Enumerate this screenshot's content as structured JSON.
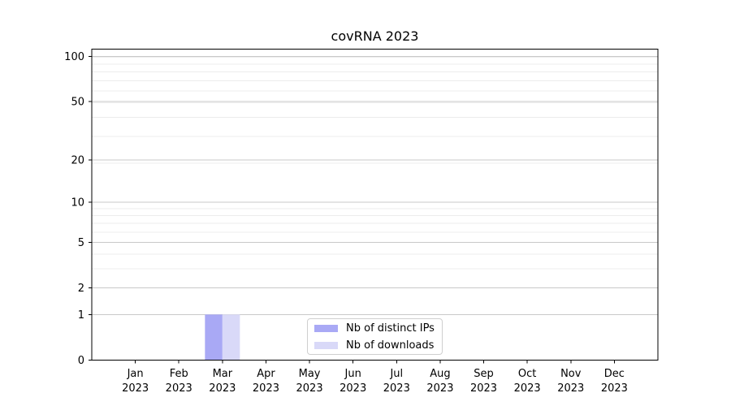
{
  "figure": {
    "background": "#ffffff"
  },
  "chart_data": {
    "type": "bar",
    "title": "covRNA 2023",
    "x_ticks": [
      {
        "month": "Jan",
        "year": "2023"
      },
      {
        "month": "Feb",
        "year": "2023"
      },
      {
        "month": "Mar",
        "year": "2023"
      },
      {
        "month": "Apr",
        "year": "2023"
      },
      {
        "month": "May",
        "year": "2023"
      },
      {
        "month": "Jun",
        "year": "2023"
      },
      {
        "month": "Jul",
        "year": "2023"
      },
      {
        "month": "Aug",
        "year": "2023"
      },
      {
        "month": "Sep",
        "year": "2023"
      },
      {
        "month": "Oct",
        "year": "2023"
      },
      {
        "month": "Nov",
        "year": "2023"
      },
      {
        "month": "Dec",
        "year": "2023"
      }
    ],
    "y_ticks": [
      {
        "label": "0",
        "value": 0
      },
      {
        "label": "1",
        "value": 1
      },
      {
        "label": "2",
        "value": 2
      },
      {
        "label": "5",
        "value": 5
      },
      {
        "label": "10",
        "value": 10
      },
      {
        "label": "20",
        "value": 20
      },
      {
        "label": "50",
        "value": 50
      },
      {
        "label": "100",
        "value": 100
      }
    ],
    "y_scale": "log1p",
    "ylim": [
      0,
      112
    ],
    "grid": {
      "horizontal_major": true,
      "horizontal_minor": true,
      "vertical": false
    },
    "series": [
      {
        "name": "Nb of distinct IPs",
        "color": "#a9a9f5",
        "values": [
          0,
          0,
          1,
          0,
          0,
          0,
          0,
          0,
          0,
          0,
          0,
          0
        ]
      },
      {
        "name": "Nb of downloads",
        "color": "#d9d9f8",
        "values": [
          0,
          0,
          1,
          0,
          0,
          0,
          0,
          0,
          0,
          0,
          0,
          0
        ]
      }
    ],
    "legend": {
      "position": "lower center"
    }
  },
  "colors": {
    "axis": "#000000",
    "text": "#000000",
    "grid_major": "#c9c9c9",
    "grid_minor": "#ececec",
    "legend_border": "#cfcfcf"
  }
}
